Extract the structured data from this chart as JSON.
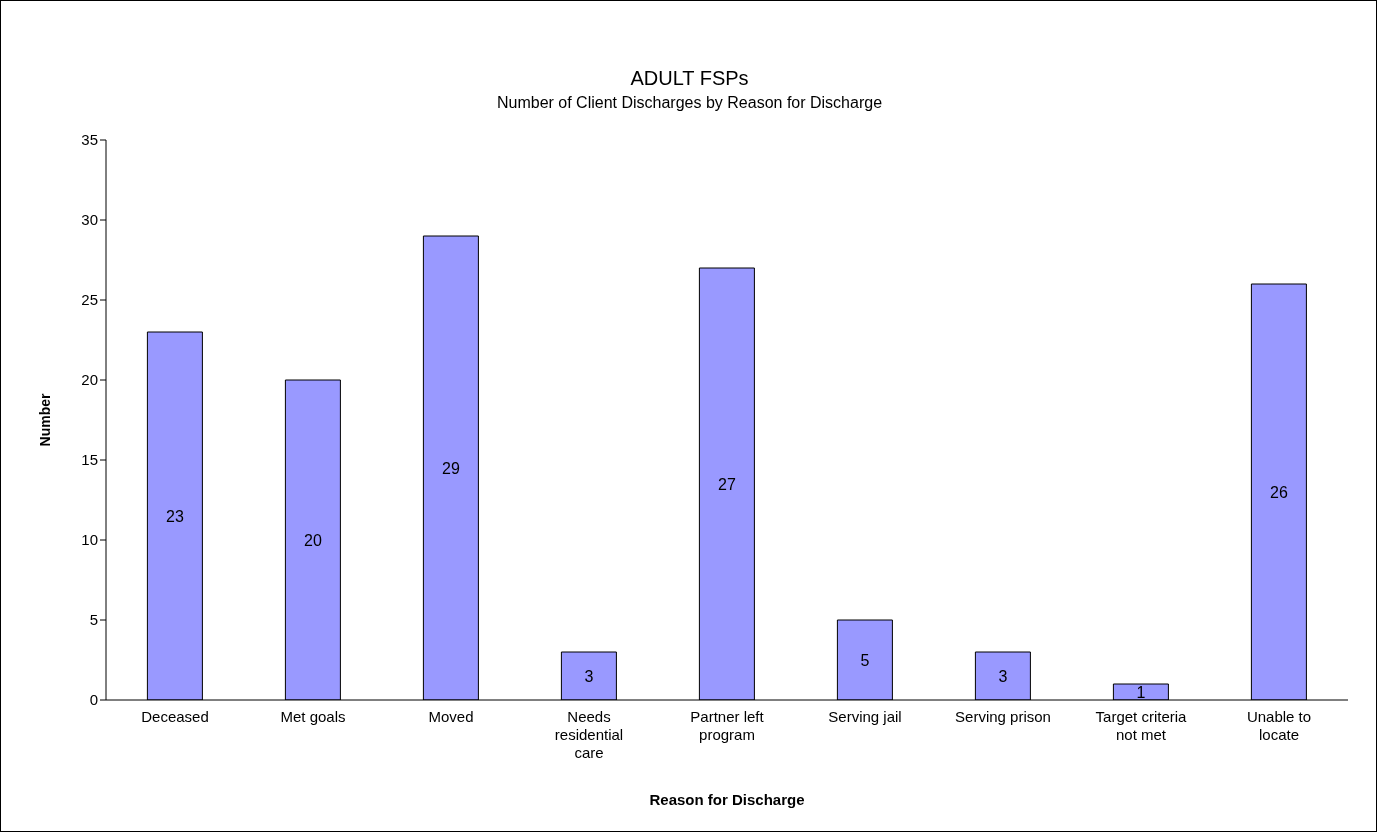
{
  "chart_data": {
    "type": "bar",
    "title": "ADULT FSPs",
    "subtitle": "Number of Client Discharges by Reason for Discharge",
    "xlabel": "Reason for Discharge",
    "ylabel": "Number",
    "categories": [
      "Deceased",
      "Met goals",
      "Moved",
      "Needs residential care",
      "Partner left program",
      "Serving jail",
      "Serving prison",
      "Target criteria not met",
      "Unable to locate"
    ],
    "values": [
      23,
      20,
      29,
      3,
      27,
      5,
      3,
      1,
      26
    ],
    "color": "#9999ff",
    "ylim": [
      0,
      35
    ],
    "yticks": [
      0,
      5,
      10,
      15,
      20,
      25,
      30,
      35
    ],
    "grid": false,
    "legend": false,
    "data_labels": true
  }
}
